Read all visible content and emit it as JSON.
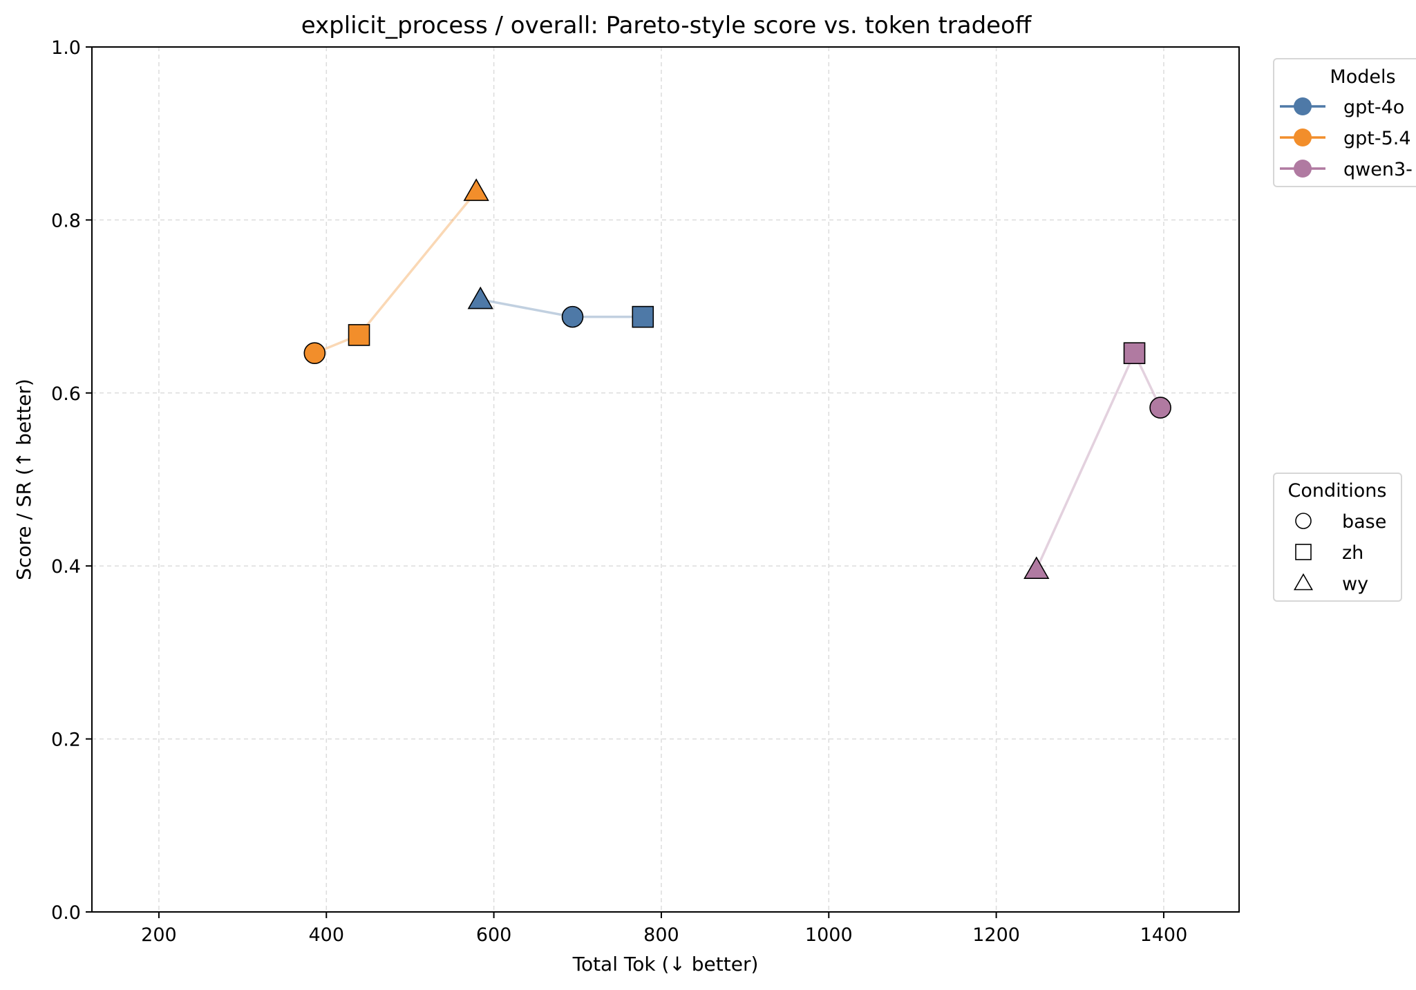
{
  "chart_data": {
    "type": "scatter",
    "title": "explicit_process / overall: Pareto-style score vs. token tradeoff",
    "xlabel": "Total Tok (↓ better)",
    "ylabel": "Score / SR (↑ better)",
    "xlim": [
      120,
      1490
    ],
    "ylim": [
      0.0,
      1.0
    ],
    "xticks": [
      200,
      400,
      600,
      800,
      1000,
      1200,
      1400
    ],
    "yticks": [
      0.0,
      0.2,
      0.4,
      0.6,
      0.8,
      1.0
    ],
    "xtick_labels": [
      "200",
      "400",
      "600",
      "800",
      "1000",
      "1200",
      "1400"
    ],
    "ytick_labels": [
      "0.0",
      "0.2",
      "0.4",
      "0.6",
      "0.8",
      "1.0"
    ],
    "grid": true,
    "legend_models_title": "Models",
    "legend_conditions_title": "Conditions",
    "legend_placement": "outside-right",
    "conditions": [
      {
        "name": "base",
        "marker": "circle"
      },
      {
        "name": "zh",
        "marker": "square"
      },
      {
        "name": "wy",
        "marker": "triangle"
      }
    ],
    "series": [
      {
        "name": "gpt-4o",
        "legend_label": "gpt-4o",
        "color": "#4e79a7",
        "points": [
          {
            "condition": "wy",
            "x": 584,
            "y": 0.708
          },
          {
            "condition": "base",
            "x": 694,
            "y": 0.688
          },
          {
            "condition": "zh",
            "x": 778,
            "y": 0.688
          }
        ]
      },
      {
        "name": "gpt-5.4",
        "legend_label": "gpt-5.4",
        "color": "#f28e2b",
        "points": [
          {
            "condition": "base",
            "x": 386,
            "y": 0.646
          },
          {
            "condition": "zh",
            "x": 439,
            "y": 0.667
          },
          {
            "condition": "wy",
            "x": 579,
            "y": 0.833
          }
        ]
      },
      {
        "name": "qwen3",
        "legend_label": "qwen3-",
        "color": "#b07aa1",
        "points": [
          {
            "condition": "wy",
            "x": 1248,
            "y": 0.396
          },
          {
            "condition": "zh",
            "x": 1365,
            "y": 0.646
          },
          {
            "condition": "base",
            "x": 1396,
            "y": 0.583
          }
        ]
      }
    ]
  }
}
